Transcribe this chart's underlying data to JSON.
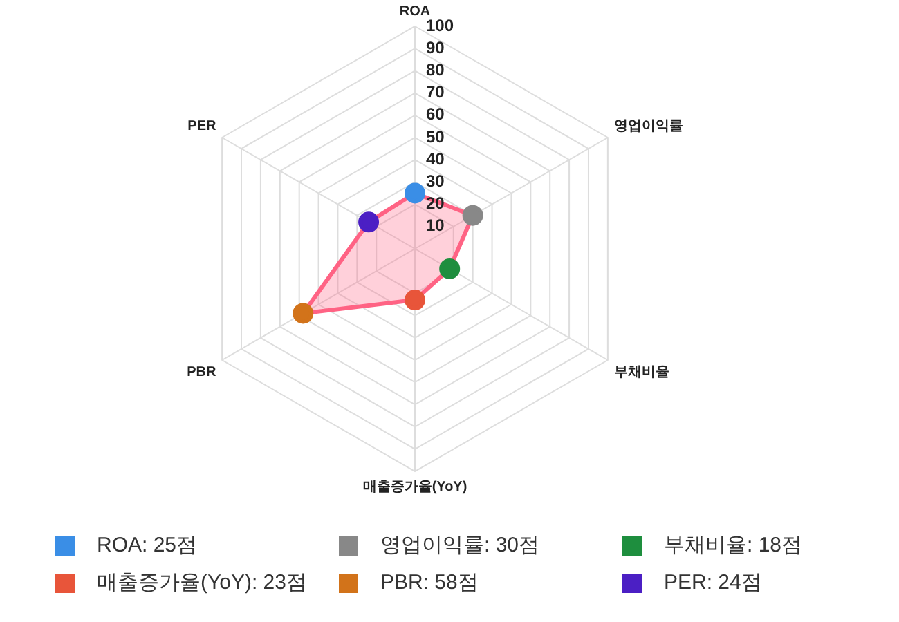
{
  "chart_data": {
    "type": "radar",
    "categories": [
      "ROA",
      "영업이익률",
      "부채비율",
      "매출증가율(YoY)",
      "PBR",
      "PER"
    ],
    "series": [
      {
        "color": "#ff6384",
        "values": [
          25,
          30,
          18,
          23,
          58,
          24
        ],
        "colors": [
          "#3a8ee6",
          "#888888",
          "#1e8e3e",
          "#e8553a",
          "#d2731a",
          "#4b1fc4"
        ]
      }
    ],
    "annotations": [
      "ROA: 25점",
      "영업이익률: 30점",
      "부채비율: 18점",
      "매출증가율(YoY): 23점",
      "PBR: 58점",
      "PER: 24점"
    ],
    "ylim": [
      0,
      100
    ],
    "yticks": [
      10,
      20,
      30,
      40,
      50,
      60,
      70,
      80,
      90,
      100
    ],
    "grid": true,
    "marker": "circle"
  }
}
